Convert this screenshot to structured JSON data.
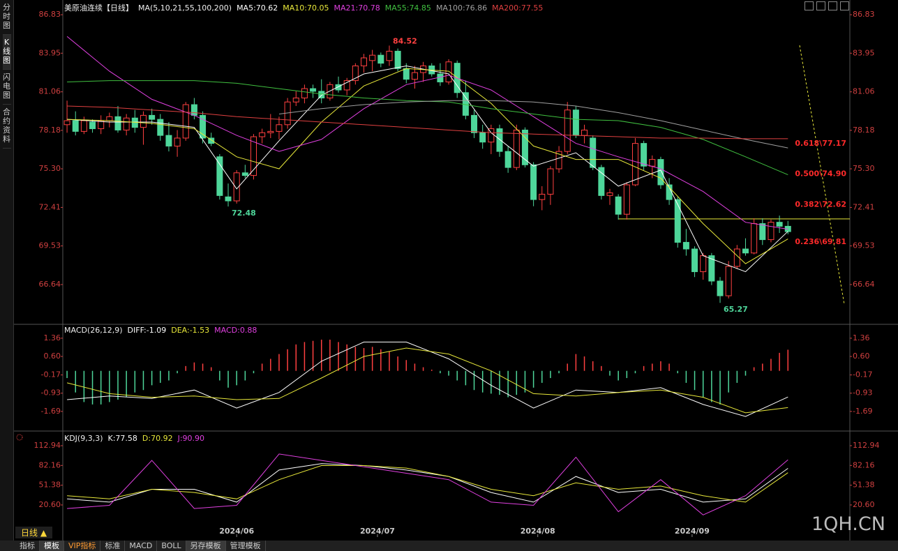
{
  "ui": {
    "sidebar": [
      "分时图",
      "K线图",
      "闪电图",
      "合约资料"
    ],
    "period": "日线 ▲",
    "tabs": [
      "指标",
      "模板",
      "VIP指标",
      "标准",
      "MACD",
      "BOLL",
      "另存模板",
      "管理模板"
    ],
    "watermark": "1QH.CN"
  },
  "chart_data": [
    {
      "type": "candlestick",
      "title": "美原油连续【日线】",
      "indicator": "MA(5,10,21,55,100,200)",
      "xlim": [
        -0.5,
        92.3
      ],
      "ylim": [
        63.82,
        87.2
      ],
      "yticks": [
        86.83,
        83.95,
        81.06,
        78.18,
        {
          "value": 75.3,
          "label": "75.30"
        },
        72.41,
        69.53,
        66.64
      ],
      "up_color": "#ff4040",
      "down_color": "#4ed69a",
      "ohlc": [
        [
          78.6,
          80.4,
          78.0,
          78.9
        ],
        [
          78.9,
          79.6,
          77.8,
          78.1
        ],
        [
          78.1,
          79.2,
          77.9,
          78.9
        ],
        [
          78.8,
          79.0,
          78.0,
          78.3
        ],
        [
          78.3,
          79.3,
          77.9,
          78.9
        ],
        [
          78.9,
          79.5,
          78.4,
          79.2
        ],
        [
          79.2,
          80.0,
          78.0,
          78.2
        ],
        [
          78.2,
          79.4,
          77.8,
          79.1
        ],
        [
          79.1,
          79.7,
          78.0,
          78.4
        ],
        [
          78.4,
          79.6,
          77.1,
          79.3
        ],
        [
          79.3,
          79.8,
          78.6,
          79.0
        ],
        [
          79.0,
          79.4,
          77.4,
          77.8
        ],
        [
          77.8,
          78.8,
          76.6,
          77.0
        ],
        [
          77.0,
          78.2,
          76.2,
          77.6
        ],
        [
          77.6,
          80.3,
          77.4,
          80.1
        ],
        [
          80.1,
          80.6,
          79.0,
          79.3
        ],
        [
          79.3,
          79.6,
          77.2,
          77.6
        ],
        [
          77.6,
          78.0,
          77.0,
          77.2
        ],
        [
          76.2,
          76.4,
          73.0,
          73.3
        ],
        [
          73.2,
          74.2,
          72.48,
          72.9
        ],
        [
          72.9,
          75.2,
          72.7,
          75.0
        ],
        [
          75.0,
          75.6,
          74.6,
          74.8
        ],
        [
          74.8,
          77.9,
          74.5,
          77.7
        ],
        [
          77.7,
          78.3,
          77.2,
          78.0
        ],
        [
          78.0,
          79.4,
          77.6,
          78.1
        ],
        [
          78.1,
          79.2,
          77.5,
          78.6
        ],
        [
          78.6,
          80.6,
          78.3,
          80.3
        ],
        [
          80.3,
          81.1,
          80.0,
          80.6
        ],
        [
          80.6,
          81.6,
          80.2,
          81.3
        ],
        [
          81.3,
          81.6,
          80.6,
          81.1
        ],
        [
          81.1,
          82.0,
          80.2,
          80.6
        ],
        [
          80.6,
          81.8,
          80.4,
          81.6
        ],
        [
          81.6,
          82.2,
          81.0,
          81.2
        ],
        [
          81.2,
          82.1,
          80.8,
          81.9
        ],
        [
          81.9,
          83.2,
          81.6,
          83.0
        ],
        [
          83.0,
          83.9,
          82.5,
          83.6
        ],
        [
          83.4,
          84.2,
          82.6,
          83.8
        ],
        [
          83.8,
          84.0,
          82.9,
          83.2
        ],
        [
          83.4,
          84.52,
          83.0,
          84.1
        ],
        [
          84.1,
          84.3,
          82.6,
          82.8
        ],
        [
          82.8,
          83.2,
          81.7,
          82.0
        ],
        [
          82.0,
          83.0,
          81.3,
          82.5
        ],
        [
          82.5,
          83.3,
          81.8,
          83.0
        ],
        [
          83.0,
          83.2,
          82.2,
          82.4
        ],
        [
          82.4,
          83.2,
          81.5,
          81.8
        ],
        [
          81.8,
          83.5,
          81.6,
          83.3
        ],
        [
          83.2,
          83.4,
          80.6,
          81.0
        ],
        [
          81.0,
          81.9,
          79.0,
          79.3
        ],
        [
          79.3,
          79.7,
          77.6,
          78.0
        ],
        [
          78.0,
          78.6,
          76.8,
          77.3
        ],
        [
          77.3,
          78.6,
          76.4,
          78.3
        ],
        [
          78.3,
          78.6,
          76.2,
          76.6
        ],
        [
          76.6,
          77.0,
          75.0,
          75.4
        ],
        [
          75.4,
          78.6,
          75.2,
          78.2
        ],
        [
          78.2,
          78.4,
          75.4,
          75.6
        ],
        [
          75.6,
          75.8,
          72.5,
          73.0
        ],
        [
          73.0,
          74.0,
          72.2,
          73.4
        ],
        [
          73.4,
          75.5,
          72.6,
          75.3
        ],
        [
          75.3,
          77.0,
          75.0,
          76.6
        ],
        [
          76.6,
          80.3,
          76.4,
          79.7
        ],
        [
          79.7,
          80.0,
          77.6,
          77.8
        ],
        [
          77.8,
          78.6,
          77.2,
          78.2
        ],
        [
          77.6,
          77.8,
          75.2,
          75.4
        ],
        [
          75.4,
          75.6,
          73.0,
          73.3
        ],
        [
          73.3,
          73.8,
          72.6,
          73.5
        ],
        [
          73.2,
          73.4,
          71.5,
          71.9
        ],
        [
          71.9,
          74.3,
          71.5,
          74.1
        ],
        [
          74.1,
          77.6,
          74.0,
          77.2
        ],
        [
          77.2,
          77.4,
          75.2,
          75.5
        ],
        [
          75.5,
          76.3,
          74.6,
          76.0
        ],
        [
          76.0,
          76.2,
          73.8,
          74.1
        ],
        [
          74.1,
          74.6,
          72.6,
          73.0
        ],
        [
          73.0,
          73.2,
          69.4,
          69.8
        ],
        [
          69.8,
          70.8,
          68.8,
          69.3
        ],
        [
          69.3,
          69.5,
          67.2,
          67.6
        ],
        [
          67.6,
          69.0,
          67.0,
          68.8
        ],
        [
          68.8,
          69.0,
          66.6,
          66.9
        ],
        [
          66.9,
          67.2,
          65.27,
          65.8
        ],
        [
          65.8,
          68.4,
          65.6,
          68.0
        ],
        [
          68.0,
          69.6,
          67.8,
          69.3
        ],
        [
          69.3,
          70.1,
          68.8,
          69.0
        ],
        [
          69.0,
          71.6,
          68.9,
          71.2
        ],
        [
          71.2,
          71.6,
          69.6,
          70.0
        ],
        [
          70.0,
          71.5,
          69.8,
          71.3
        ],
        [
          71.3,
          71.8,
          70.5,
          71.0
        ],
        [
          71.0,
          71.4,
          70.4,
          70.6
        ]
      ],
      "series": [
        {
          "name": "MA5:70.62",
          "color": "#ffffff",
          "x": [
            0,
            5,
            10,
            15,
            20,
            25,
            30,
            35,
            40,
            45,
            50,
            55,
            60,
            65,
            70,
            75,
            80,
            85
          ],
          "values": [
            79.0,
            78.8,
            78.8,
            78.4,
            73.8,
            77.4,
            80.8,
            82.4,
            83.0,
            82.4,
            78.0,
            75.5,
            76.5,
            74.0,
            75.2,
            68.8,
            67.6,
            70.62
          ]
        },
        {
          "name": "MA10:70.05",
          "color": "#e8e83a",
          "x": [
            0,
            5,
            10,
            15,
            20,
            25,
            30,
            35,
            40,
            45,
            50,
            55,
            60,
            65,
            70,
            75,
            80,
            85
          ],
          "values": [
            79.0,
            78.9,
            78.7,
            78.3,
            76.2,
            75.3,
            78.8,
            81.5,
            82.8,
            82.6,
            80.2,
            77.0,
            76.0,
            76.0,
            74.6,
            71.2,
            68.2,
            70.05
          ]
        },
        {
          "name": "MA21:70.78",
          "color": "#e040e0",
          "x": [
            0,
            5,
            10,
            15,
            20,
            25,
            30,
            35,
            40,
            45,
            50,
            55,
            60,
            65,
            70,
            75,
            80,
            85
          ],
          "values": [
            85.2,
            82.6,
            80.5,
            79.3,
            77.8,
            76.6,
            77.5,
            79.8,
            81.6,
            82.3,
            81.2,
            79.2,
            77.2,
            76.2,
            75.3,
            73.6,
            71.3,
            70.78
          ]
        },
        {
          "name": "MA55:74.85",
          "color": "#40c040",
          "x": [
            0,
            5,
            10,
            15,
            20,
            25,
            30,
            35,
            40,
            45,
            50,
            55,
            60,
            65,
            70,
            75,
            80,
            85
          ],
          "values": [
            81.8,
            81.9,
            81.9,
            81.9,
            81.7,
            81.3,
            80.9,
            80.6,
            80.4,
            80.3,
            79.8,
            79.4,
            79.0,
            78.9,
            78.4,
            77.5,
            76.2,
            74.85
          ]
        },
        {
          "name": "MA100:76.86",
          "color": "#a0a0a0",
          "x": [
            0,
            5,
            10,
            15,
            20,
            25,
            30,
            35,
            40,
            45,
            50,
            55,
            60,
            65,
            70,
            75,
            80,
            85
          ],
          "values": [
            null,
            null,
            null,
            null,
            null,
            79.4,
            79.8,
            80.1,
            80.3,
            80.4,
            80.4,
            80.3,
            80.0,
            79.5,
            78.9,
            78.2,
            77.5,
            76.86
          ]
        },
        {
          "name": "MA200:77.55",
          "color": "#e04040",
          "x": [
            0,
            5,
            10,
            15,
            20,
            25,
            30,
            35,
            40,
            45,
            50,
            55,
            60,
            65,
            70,
            75,
            80,
            85
          ],
          "values": [
            80.0,
            79.9,
            79.7,
            79.5,
            79.2,
            79.0,
            78.8,
            78.6,
            78.4,
            78.2,
            78.0,
            77.9,
            77.8,
            77.7,
            77.6,
            77.6,
            77.55,
            77.55
          ]
        }
      ],
      "extremes": [
        {
          "candle": 38,
          "value": 84.52,
          "label": "84.52",
          "color": "#ff4040"
        },
        {
          "candle": 19,
          "value": 72.48,
          "label": "72.48",
          "color": "#4ed69a"
        },
        {
          "candle": 77,
          "value": 65.27,
          "label": "65.27",
          "color": "#4ed69a"
        }
      ],
      "fib": [
        {
          "value": 77.17,
          "label": "0.618\\77.17"
        },
        {
          "value": 74.9,
          "label": "0.500\\74.90"
        },
        {
          "value": 72.62,
          "label": "0.382\\72.62"
        },
        {
          "value": 69.81,
          "label": "0.236\\69.81"
        }
      ],
      "fib_color": "#ff2a2a",
      "hline": {
        "value": 71.55,
        "from": 65,
        "color": "#e8e83a"
      }
    },
    {
      "type": "bar",
      "title": "MACD(26,12,9)",
      "xlim": [
        -0.5,
        92.3
      ],
      "ylim": [
        -2.42,
        1.88
      ],
      "yticks": [
        1.36,
        {
          "value": 0.6,
          "label": "0.60"
        },
        -0.17,
        -0.93,
        -1.69
      ],
      "bars": {
        "name": "MACD:0.88",
        "color": "#e040e0",
        "up_color": "#ff4040",
        "down_color": "#4ed69a",
        "values": [
          -0.3,
          -0.9,
          -1.3,
          -1.4,
          -1.4,
          -1.3,
          -1.2,
          -1.1,
          -0.9,
          -0.8,
          -0.6,
          -0.5,
          -0.4,
          -0.1,
          0.2,
          0.35,
          0.3,
          0.15,
          -0.4,
          -0.7,
          -0.6,
          -0.4,
          -0.1,
          0.3,
          0.5,
          0.7,
          0.9,
          1.1,
          1.2,
          1.25,
          1.3,
          1.3,
          1.2,
          1.1,
          1.0,
          0.95,
          1.0,
          0.9,
          0.8,
          0.6,
          0.45,
          0.3,
          0.15,
          0.05,
          -0.1,
          -0.2,
          -0.4,
          -0.6,
          -0.8,
          -0.9,
          -0.95,
          -1.0,
          -1.1,
          -1.0,
          -0.9,
          -0.7,
          -0.5,
          -0.3,
          -0.1,
          0.3,
          0.7,
          0.6,
          0.4,
          0.2,
          -0.2,
          -0.4,
          -0.3,
          -0.1,
          0.2,
          0.3,
          0.4,
          0.3,
          -0.1,
          -0.5,
          -0.8,
          -1.1,
          -1.3,
          -1.4,
          -0.9,
          -0.5,
          -0.2,
          0.15,
          0.3,
          0.5,
          0.75,
          0.88
        ]
      },
      "series": [
        {
          "name": "DIFF:-1.09",
          "color": "#ffffff",
          "x": [
            0,
            5,
            10,
            15,
            20,
            25,
            30,
            35,
            40,
            45,
            50,
            55,
            60,
            65,
            70,
            75,
            80,
            85
          ],
          "values": [
            -1.2,
            -1.05,
            -1.15,
            -0.8,
            -1.55,
            -0.9,
            0.4,
            1.2,
            1.2,
            0.5,
            -0.6,
            -1.55,
            -0.8,
            -0.9,
            -0.7,
            -1.4,
            -1.9,
            -1.09
          ]
        },
        {
          "name": "DEA:-1.53",
          "color": "#e8e83a",
          "x": [
            0,
            5,
            10,
            15,
            20,
            25,
            30,
            35,
            40,
            45,
            50,
            55,
            60,
            65,
            70,
            75,
            80,
            85
          ],
          "values": [
            -0.5,
            -0.95,
            -1.1,
            -1.05,
            -1.2,
            -1.15,
            -0.3,
            0.6,
            0.95,
            0.7,
            0.0,
            -0.95,
            -1.05,
            -0.9,
            -0.8,
            -1.1,
            -1.75,
            -1.53
          ]
        }
      ]
    },
    {
      "type": "line",
      "title": "KDJ(9,3,3)",
      "xlim": [
        -0.5,
        92.3
      ],
      "ylim": [
        -29.4,
        131.4
      ],
      "yticks": [
        112.94,
        82.16,
        51.38,
        {
          "value": 20.6,
          "label": "20.60"
        }
      ],
      "xticks": [
        {
          "value": 20,
          "label": "2024/06"
        },
        {
          "value": 36.6,
          "label": "2024/07"
        },
        {
          "value": 55.5,
          "label": "2024/08"
        },
        {
          "value": 73.7,
          "label": "2024/09"
        }
      ],
      "series": [
        {
          "name": "K:77.58",
          "color": "#ffffff",
          "x": [
            0,
            5,
            10,
            15,
            20,
            25,
            30,
            35,
            40,
            45,
            50,
            55,
            60,
            65,
            70,
            75,
            80,
            85
          ],
          "values": [
            30,
            25,
            45,
            45,
            25,
            75,
            85,
            82,
            75,
            65,
            40,
            25,
            65,
            40,
            45,
            25,
            30,
            77.58
          ]
        },
        {
          "name": "D:70.92",
          "color": "#e8e83a",
          "x": [
            0,
            5,
            10,
            15,
            20,
            25,
            30,
            35,
            40,
            45,
            50,
            55,
            60,
            65,
            70,
            75,
            80,
            85
          ],
          "values": [
            35,
            30,
            45,
            40,
            30,
            60,
            82,
            82,
            78,
            65,
            45,
            35,
            55,
            45,
            50,
            35,
            25,
            70.92
          ]
        },
        {
          "name": "J:90.90",
          "color": "#e040e0",
          "x": [
            0,
            5,
            10,
            15,
            20,
            25,
            30,
            35,
            40,
            45,
            50,
            55,
            60,
            65,
            70,
            75,
            80,
            85
          ],
          "values": [
            15,
            20,
            90,
            15,
            20,
            100,
            90,
            80,
            70,
            60,
            25,
            20,
            95,
            10,
            60,
            5,
            35,
            90.9
          ]
        }
      ]
    }
  ]
}
